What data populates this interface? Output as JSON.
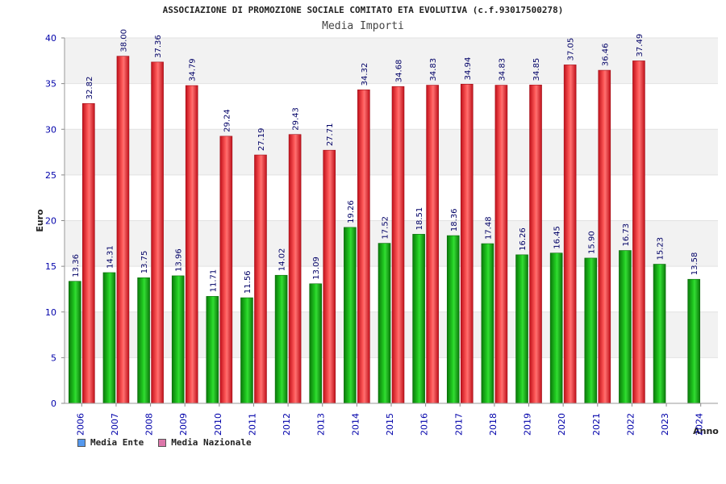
{
  "colors": {
    "ente": "#19b219",
    "nazionale": "#e8323c",
    "legend_ente": "#5599ee",
    "legend_nazionale": "#dd77aa",
    "axis_text": "#0000aa",
    "band": "#f2f2f2"
  },
  "chart_data": {
    "type": "bar",
    "title": "ASSOCIAZIONE DI PROMOZIONE SOCIALE COMITATO ETA EVOLUTIVA (c.f.93017500278)",
    "subtitle": "Media Importi",
    "xlabel": "Anno",
    "ylabel": "Euro",
    "ylim": [
      0,
      40
    ],
    "yticks": [
      0,
      5,
      10,
      15,
      20,
      25,
      30,
      35,
      40
    ],
    "grid": true,
    "legend_position": "bottom-left",
    "categories": [
      "2006",
      "2007",
      "2008",
      "2009",
      "2010",
      "2011",
      "2012",
      "2013",
      "2014",
      "2015",
      "2016",
      "2017",
      "2018",
      "2019",
      "2020",
      "2021",
      "2022",
      "2023",
      "2024"
    ],
    "series": [
      {
        "name": "Media Ente",
        "values": [
          13.36,
          14.31,
          13.75,
          13.96,
          11.71,
          11.56,
          14.02,
          13.09,
          19.26,
          17.52,
          18.51,
          18.36,
          17.48,
          16.26,
          16.45,
          15.9,
          16.73,
          15.23,
          13.58
        ],
        "labels": [
          "13.36",
          "14.31",
          "13.75",
          "13.96",
          "11.71",
          "11.56",
          "14.02",
          "13.09",
          "19.26",
          "17.52",
          "18.51",
          "18.36",
          "17.48",
          "16.26",
          "16.45",
          "15.90",
          "16.73",
          "15.23",
          "13.58"
        ]
      },
      {
        "name": "Media Nazionale",
        "values": [
          32.82,
          38.0,
          37.36,
          34.79,
          29.24,
          27.19,
          29.43,
          27.71,
          34.32,
          34.68,
          34.83,
          34.94,
          34.83,
          34.85,
          37.05,
          36.46,
          37.49,
          null,
          null
        ],
        "labels": [
          "32.82",
          "38.00",
          "37.36",
          "34.79",
          "29.24",
          "27.19",
          "29.43",
          "27.71",
          "34.32",
          "34.68",
          "34.83",
          "34.94",
          "34.83",
          "34.85",
          "37.05",
          "36.46",
          "37.49",
          "",
          ""
        ]
      }
    ]
  }
}
